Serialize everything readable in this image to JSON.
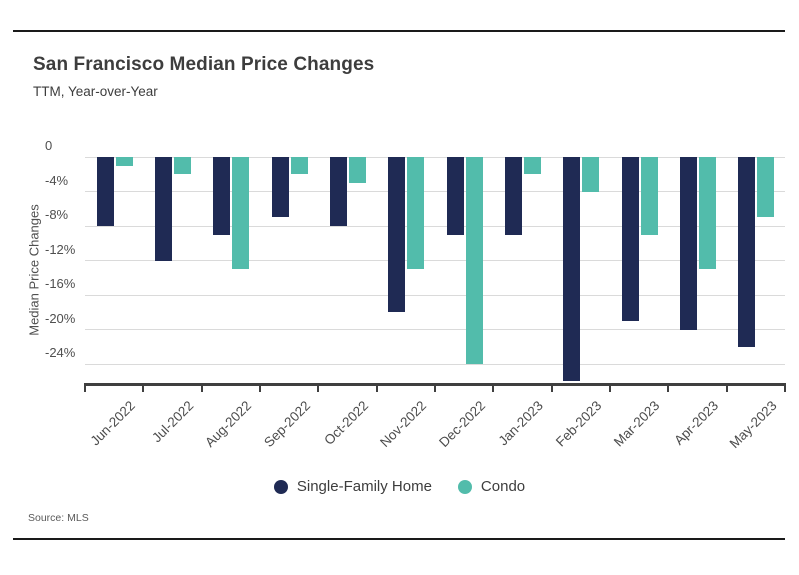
{
  "header": {
    "title": "San Francisco Median Price Changes",
    "subtitle": "TTM, Year-over-Year"
  },
  "source": "Source: MLS",
  "chart_data": {
    "type": "bar",
    "title": "San Francisco Median Price Changes",
    "subtitle": "TTM, Year-over-Year",
    "ylabel": "Median Price Changes",
    "xlabel": "",
    "categories": [
      "Jun-2022",
      "Jul-2022",
      "Aug-2022",
      "Sep-2022",
      "Oct-2022",
      "Nov-2022",
      "Dec-2022",
      "Jan-2023",
      "Feb-2023",
      "Mar-2023",
      "Apr-2023",
      "May-2023"
    ],
    "series": [
      {
        "name": "Single-Family Home",
        "color": "#1f2a54",
        "values": [
          -8,
          -12,
          -9,
          -7,
          -8,
          -18,
          -9,
          -9,
          -26,
          -19,
          -20,
          -22
        ]
      },
      {
        "name": "Condo",
        "color": "#52bcab",
        "values": [
          -1,
          -2,
          -13,
          -2,
          -3,
          -13,
          -24,
          -2,
          -4,
          -9,
          -13,
          -7
        ]
      }
    ],
    "yticks": [
      {
        "label": "0",
        "value": 0
      },
      {
        "label": "-4%",
        "value": -4
      },
      {
        "label": "-8%",
        "value": -8
      },
      {
        "label": "-12%",
        "value": -12
      },
      {
        "label": "-16%",
        "value": -16
      },
      {
        "label": "-20%",
        "value": -20
      },
      {
        "label": "-24%",
        "value": -24
      }
    ],
    "ylim": [
      -26.2,
      0
    ],
    "grid": "horizontal",
    "legend_position": "bottom-center",
    "units": "percent"
  }
}
